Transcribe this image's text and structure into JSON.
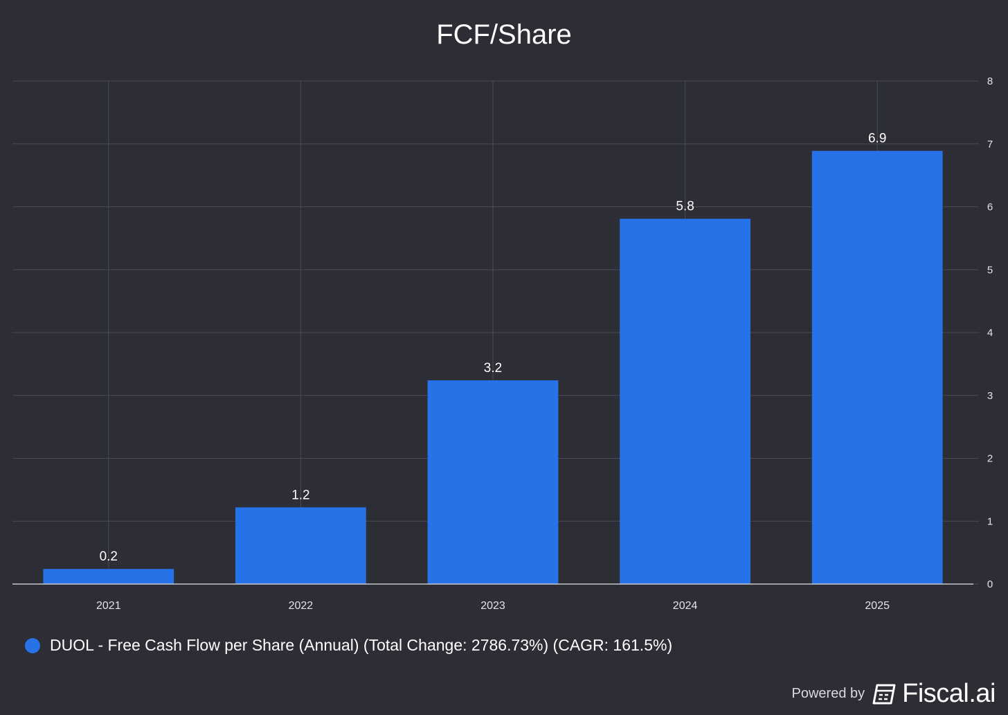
{
  "chart_data": {
    "type": "bar",
    "title": "FCF/Share",
    "categories": [
      "2021",
      "2022",
      "2023",
      "2024",
      "2025"
    ],
    "series": [
      {
        "name": "DUOL - Free Cash Flow per Share (Annual) (Total Change: 2786.73%) (CAGR: 161.5%)",
        "values": [
          0.24,
          1.22,
          3.24,
          5.81,
          6.89
        ],
        "labels": [
          "0.2",
          "1.2",
          "3.2",
          "5.8",
          "6.9"
        ],
        "color": "#2872e8"
      }
    ],
    "ylim": [
      0,
      8
    ],
    "yticks": [
      "0",
      "1",
      "2",
      "3",
      "4",
      "5",
      "6",
      "7",
      "8"
    ],
    "y_axis_side": "right",
    "grid": true,
    "legend_position": "bottom-left"
  },
  "branding": {
    "powered_by": "Powered by",
    "logo_text": "Fiscal.ai"
  },
  "colors": {
    "background": "#2c2d35",
    "grid": "#4a4b54",
    "axis": "#c8c8cc",
    "bar": "#2872e8",
    "text": "#ffffff",
    "tick_text": "#e4e4e8"
  }
}
